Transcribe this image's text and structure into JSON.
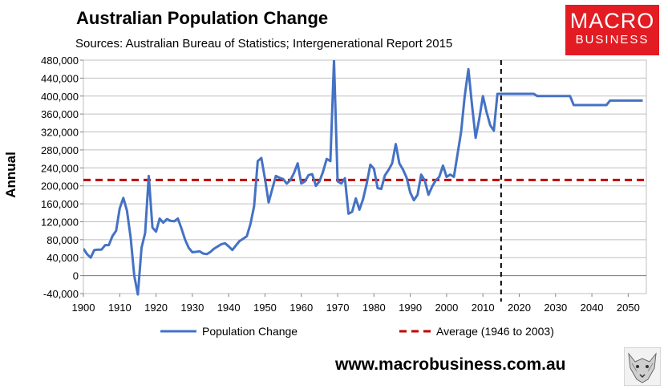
{
  "header": {
    "title": "Australian Population Change",
    "subtitle": "Sources: Australian Bureau of Statistics; Intergenerational Report 2015"
  },
  "logo": {
    "line1": "MACRO",
    "line2": "BUSINESS"
  },
  "footer": {
    "website": "www.macrobusiness.com.au"
  },
  "colors": {
    "series": "#4472c4",
    "average": "#c00000",
    "divider": "#000000",
    "logo_bg": "#e31b23"
  },
  "chart_data": {
    "type": "line",
    "title": "Australian Population Change",
    "ylabel": "Annual",
    "xlabel": "",
    "xlim": [
      1900,
      2055
    ],
    "ylim": [
      -40000,
      480000
    ],
    "x_ticks": [
      1900,
      1910,
      1920,
      1930,
      1940,
      1950,
      1960,
      1970,
      1980,
      1990,
      2000,
      2010,
      2020,
      2030,
      2040,
      2050
    ],
    "y_ticks": [
      -40000,
      0,
      40000,
      80000,
      120000,
      160000,
      200000,
      240000,
      280000,
      320000,
      360000,
      400000,
      440000,
      480000
    ],
    "y_tick_labels": [
      "-40,000",
      "0",
      "40,000",
      "80,000",
      "120,000",
      "160,000",
      "200,000",
      "240,000",
      "280,000",
      "320,000",
      "360,000",
      "400,000",
      "440,000",
      "480,000"
    ],
    "grid": "horizontal",
    "legend_position": "bottom",
    "series": [
      {
        "name": "Population Change",
        "style": "solid",
        "x": [
          1900,
          1901,
          1902,
          1903,
          1904,
          1905,
          1906,
          1907,
          1908,
          1909,
          1910,
          1911,
          1912,
          1913,
          1914,
          1915,
          1916,
          1917,
          1918,
          1919,
          1920,
          1921,
          1922,
          1923,
          1924,
          1925,
          1926,
          1927,
          1928,
          1929,
          1930,
          1931,
          1932,
          1933,
          1934,
          1935,
          1936,
          1937,
          1938,
          1939,
          1940,
          1941,
          1942,
          1943,
          1944,
          1945,
          1946,
          1947,
          1948,
          1949,
          1950,
          1951,
          1952,
          1953,
          1954,
          1955,
          1956,
          1957,
          1958,
          1959,
          1960,
          1961,
          1962,
          1963,
          1964,
          1965,
          1966,
          1967,
          1968,
          1969,
          1970,
          1971,
          1972,
          1973,
          1974,
          1975,
          1976,
          1977,
          1978,
          1979,
          1980,
          1981,
          1982,
          1983,
          1984,
          1985,
          1986,
          1987,
          1988,
          1989,
          1990,
          1991,
          1992,
          1993,
          1994,
          1995,
          1996,
          1997,
          1998,
          1999,
          2000,
          2001,
          2002,
          2003,
          2004,
          2005,
          2006,
          2007,
          2008,
          2009,
          2010,
          2011,
          2012,
          2013,
          2014,
          2015,
          2020,
          2024,
          2025,
          2030,
          2034,
          2035,
          2040,
          2044,
          2045,
          2050,
          2054
        ],
        "values": [
          60000,
          48000,
          40000,
          57000,
          58000,
          58000,
          68000,
          68000,
          88000,
          100000,
          150000,
          173000,
          145000,
          85000,
          0,
          -42000,
          62000,
          95000,
          222000,
          107000,
          98000,
          127000,
          118000,
          126000,
          122000,
          121000,
          127000,
          105000,
          80000,
          62000,
          52000,
          53000,
          54000,
          49000,
          48000,
          53000,
          60000,
          65000,
          70000,
          72000,
          65000,
          57000,
          67000,
          77000,
          82000,
          88000,
          115000,
          155000,
          255000,
          262000,
          215000,
          163000,
          193000,
          222000,
          218000,
          215000,
          205000,
          213000,
          229000,
          250000,
          205000,
          210000,
          224000,
          226000,
          200000,
          210000,
          232000,
          260000,
          255000,
          480000,
          210000,
          205000,
          217000,
          138000,
          142000,
          172000,
          147000,
          170000,
          205000,
          247000,
          238000,
          195000,
          193000,
          223000,
          235000,
          250000,
          293000,
          250000,
          236000,
          218000,
          185000,
          168000,
          180000,
          225000,
          212000,
          180000,
          198000,
          212000,
          220000,
          245000,
          220000,
          225000,
          220000,
          270000,
          320000,
          400000,
          460000,
          380000,
          307000,
          350000,
          400000,
          365000,
          335000,
          323000,
          405000,
          405000,
          405000,
          405000,
          400000,
          400000,
          400000,
          380000,
          380000,
          380000,
          390000,
          390000,
          390000
        ]
      },
      {
        "name": "Average (1946 to 2003)",
        "style": "dashed",
        "x": [
          1900,
          2055
        ],
        "values": [
          213000,
          213000
        ]
      }
    ],
    "vertical_marker_x": 2015
  }
}
